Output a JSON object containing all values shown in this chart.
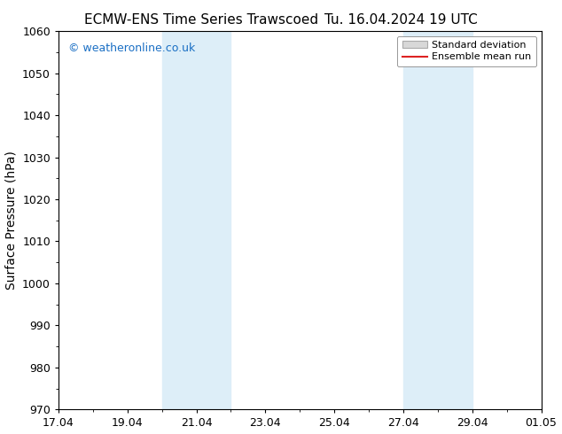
{
  "title_left": "ECMW-ENS Time Series Trawscoed",
  "title_right": "Tu. 16.04.2024 19 UTC",
  "ylabel": "Surface Pressure (hPa)",
  "ylim": [
    970,
    1060
  ],
  "yticks": [
    970,
    980,
    990,
    1000,
    1010,
    1020,
    1030,
    1040,
    1050,
    1060
  ],
  "xtick_labels": [
    "17.04",
    "19.04",
    "21.04",
    "23.04",
    "25.04",
    "27.04",
    "29.04",
    "01.05"
  ],
  "xtick_positions": [
    0,
    2,
    4,
    6,
    8,
    10,
    12,
    14
  ],
  "xlim": [
    0,
    14
  ],
  "shaded_bands": [
    {
      "x_start": 3.0,
      "x_end": 5.0
    },
    {
      "x_start": 10.0,
      "x_end": 12.0
    }
  ],
  "shade_color": "#ddeef8",
  "watermark_text": "© weatheronline.co.uk",
  "watermark_color": "#1a6fc4",
  "legend_std_label": "Standard deviation",
  "legend_mean_label": "Ensemble mean run",
  "legend_std_facecolor": "#d8d8d8",
  "legend_std_edgecolor": "#aaaaaa",
  "legend_mean_color": "#dd2222",
  "background_color": "#ffffff",
  "title_fontsize": 11,
  "axis_label_fontsize": 10,
  "tick_fontsize": 9,
  "watermark_fontsize": 9,
  "legend_fontsize": 8
}
